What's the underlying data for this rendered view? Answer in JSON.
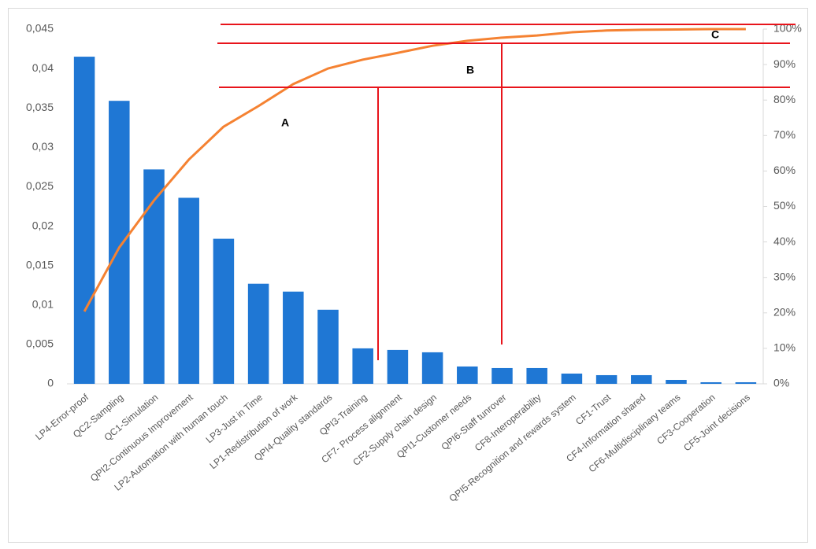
{
  "chart_data": {
    "type": "pareto",
    "categories": [
      "LP4-Error-proof",
      "QC2-Sampling",
      "QC1-Simulation",
      "QPI2-Continuous Improvement",
      "LP2-Automation with human touch",
      "LP3-Just in Time",
      "LP1-Redistribution of work",
      "QPI4-Quality standards",
      "QPI3-Training",
      "CF7- Process alignment",
      "CF2-Supply chain design",
      "QPI1-Customer needs",
      "QPI6-Staff tunrover",
      "CF8-Interoperability",
      "QPI5-Recognition and rewards system",
      "CF1-Trust",
      "CF4-Information shared",
      "CF6-Multidisciplinary teams",
      "CF3-Cooperation",
      "CF5-Joint decisions"
    ],
    "series": [
      {
        "type": "bar",
        "color": "#1f77d4",
        "values": [
          0.0415,
          0.0359,
          0.0272,
          0.0236,
          0.0184,
          0.0127,
          0.0117,
          0.0094,
          0.0045,
          0.0043,
          0.004,
          0.0022,
          0.002,
          0.002,
          0.0013,
          0.0011,
          0.0011,
          0.0005,
          0.0002,
          0.0002
        ]
      },
      {
        "type": "line",
        "axis": "y2",
        "color": "#f58232",
        "values": [
          20.4,
          38.4,
          51.7,
          63.2,
          72.5,
          78.3,
          84.5,
          88.9,
          91.4,
          93.3,
          95.3,
          96.7,
          97.6,
          98.2,
          99.1,
          99.6,
          99.8,
          99.9,
          100,
          100
        ]
      }
    ],
    "ylim": [
      0,
      0.045
    ],
    "yticks": [
      0,
      {
        "value": 0.005,
        "label": "0,005"
      },
      {
        "value": 0.01,
        "label": "0,01"
      },
      {
        "value": 0.015,
        "label": "0,015"
      },
      {
        "value": 0.02,
        "label": "0,02"
      },
      {
        "value": 0.025,
        "label": "0,025"
      },
      {
        "value": 0.03,
        "label": "0,03"
      },
      {
        "value": 0.035,
        "label": "0,035"
      },
      {
        "value": 0.04,
        "label": "0,04"
      },
      {
        "value": 0.045,
        "label": "0,045"
      }
    ],
    "y2lim": [
      0,
      100
    ],
    "y2ticks": [
      {
        "value": 0,
        "label": "0%"
      },
      {
        "value": 10,
        "label": "10%"
      },
      {
        "value": 20,
        "label": "20%"
      },
      {
        "value": 30,
        "label": "30%"
      },
      {
        "value": 40,
        "label": "40%"
      },
      {
        "value": 50,
        "label": "50%"
      },
      {
        "value": 60,
        "label": "60%"
      },
      {
        "value": 70,
        "label": "70%"
      },
      {
        "value": 80,
        "label": "80%"
      },
      {
        "value": 90,
        "label": "90%"
      },
      {
        "value": 100,
        "label": "100%"
      }
    ],
    "annotations": [
      "A",
      "B",
      "C"
    ],
    "grid": false
  }
}
